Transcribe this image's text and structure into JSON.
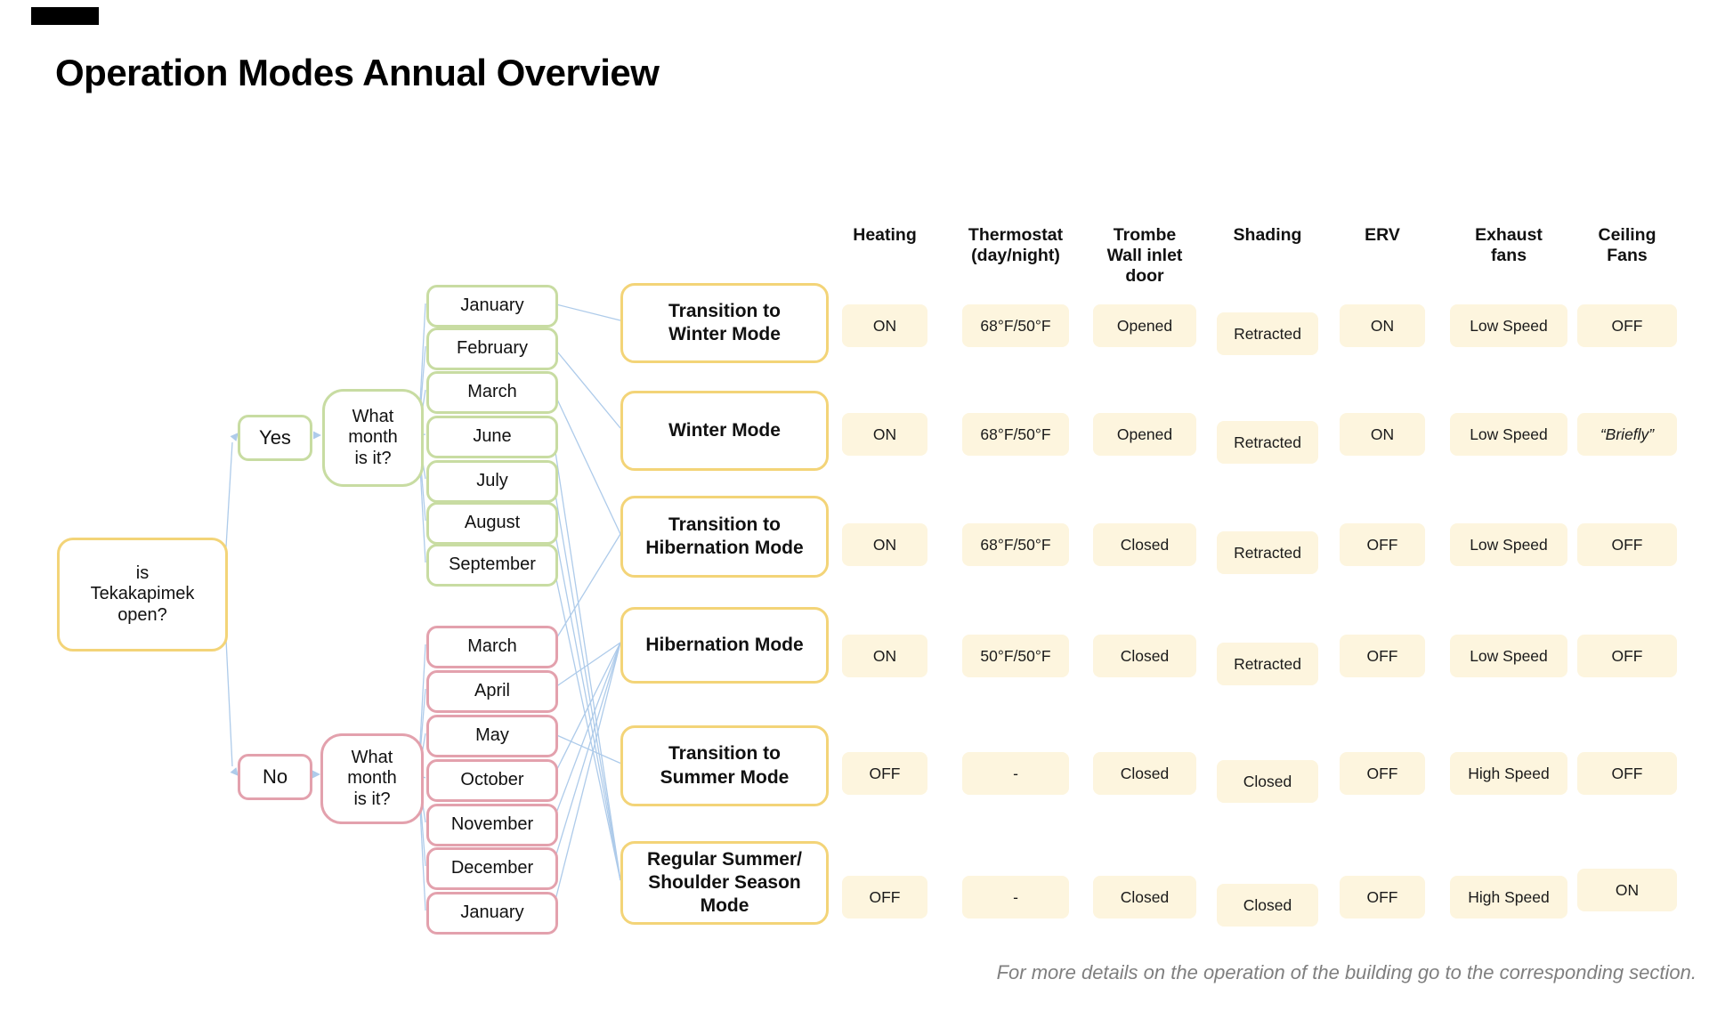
{
  "title": "Operation Modes Annual Overview",
  "decision": {
    "root": "is\nTekakapimek\nopen?",
    "yes": "Yes",
    "no": "No",
    "question": "What\nmonth\nis it?"
  },
  "months_open": [
    "January",
    "February",
    "March",
    "June",
    "July",
    "August",
    "September"
  ],
  "months_closed": [
    "March",
    "April",
    "May",
    "October",
    "November",
    "December",
    "January"
  ],
  "modes": [
    "Transition to\nWinter Mode",
    "Winter Mode",
    "Transition to\nHibernation Mode",
    "Hibernation Mode",
    "Transition to\nSummer Mode",
    "Regular Summer/\nShoulder Season\nMode"
  ],
  "diagram": {
    "links_open": [
      0,
      1,
      2,
      5,
      5,
      5,
      5
    ],
    "links_closed": [
      2,
      3,
      4,
      3,
      3,
      3,
      3
    ]
  },
  "table": {
    "headers": [
      "Heating",
      "Thermostat\n(day/night)",
      "Trombe\nWall inlet\ndoor",
      "Shading",
      "ERV",
      "Exhaust\nfans",
      "Ceiling\nFans"
    ],
    "rows": [
      [
        "ON",
        "68°F/50°F",
        "Opened",
        "Retracted",
        "ON",
        "Low Speed",
        "OFF"
      ],
      [
        "ON",
        "68°F/50°F",
        "Opened",
        "Retracted",
        "ON",
        "Low Speed",
        "“Briefly”"
      ],
      [
        "ON",
        "68°F/50°F",
        "Closed",
        "Retracted",
        "OFF",
        "Low Speed",
        "OFF"
      ],
      [
        "ON",
        "50°F/50°F",
        "Closed",
        "Retracted",
        "OFF",
        "Low Speed",
        "OFF"
      ],
      [
        "OFF",
        "-",
        "Closed",
        "Closed",
        "OFF",
        "High Speed",
        "OFF"
      ],
      [
        "OFF",
        "-",
        "Closed",
        "Closed",
        "OFF",
        "High Speed",
        "ON"
      ]
    ]
  },
  "footer": "For more details on the operation of the building go to the corresponding section.",
  "colors": {
    "mode_border": "#f3d478",
    "open_border": "#c8dca2",
    "closed_border": "#e3a1ad",
    "cell_bg": "#fdf5de",
    "connector": "#aecbea",
    "footer_text": "#7f7f7f"
  }
}
